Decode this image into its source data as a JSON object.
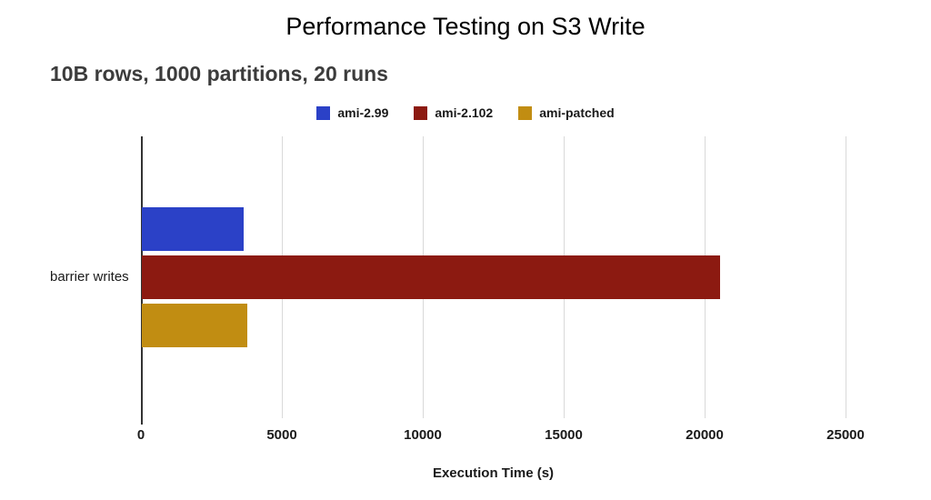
{
  "title": "Performance Testing on S3 Write",
  "subtitle": "10B rows, 1000 partitions, 20 runs",
  "chart_data": {
    "type": "bar",
    "orientation": "horizontal",
    "title": "Performance Testing on S3 Write",
    "subtitle": "10B rows, 1000 partitions, 20 runs",
    "categories": [
      "barrier writes"
    ],
    "series": [
      {
        "name": "ami-2.99",
        "color": "#2b41c7",
        "values": [
          3600
        ]
      },
      {
        "name": "ami-2.102",
        "color": "#8c1a11",
        "values": [
          20500
        ]
      },
      {
        "name": "ami-patched",
        "color": "#c18d12",
        "values": [
          3750
        ]
      }
    ],
    "xlabel": "Execution Time (s)",
    "ylabel": "",
    "xlim": [
      0,
      25000
    ],
    "xticks": [
      0,
      5000,
      10000,
      15000,
      20000,
      25000
    ],
    "grid": true,
    "legend_position": "top"
  }
}
